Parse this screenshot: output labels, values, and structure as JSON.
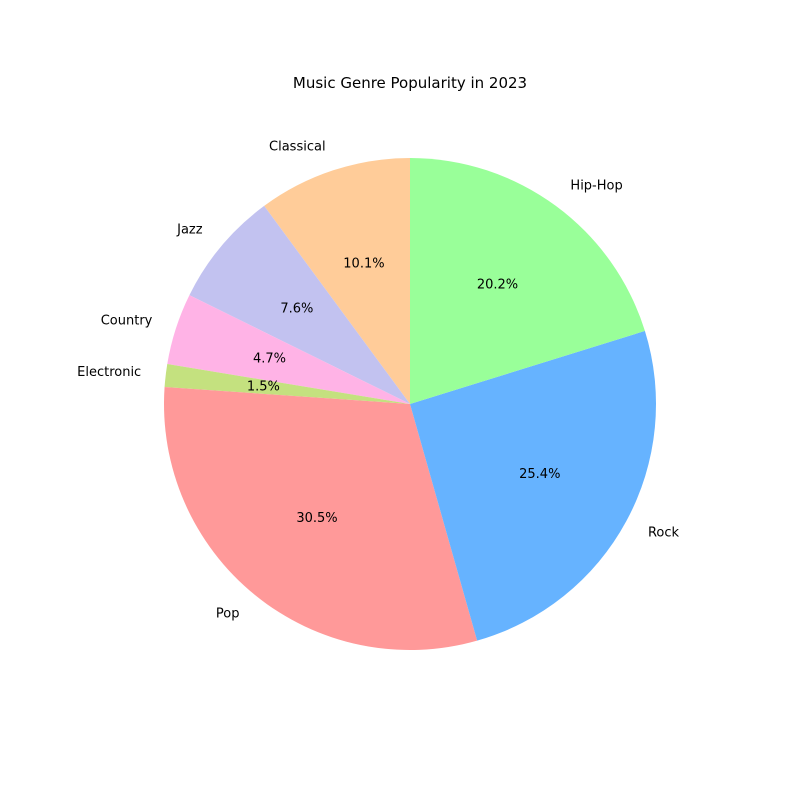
{
  "chart_data": {
    "type": "pie",
    "title": "Music Genre Popularity in 2023",
    "start_angle_deg": 90,
    "direction": "counterclockwise",
    "legend": "none",
    "slices": [
      {
        "label": "Classical",
        "value": 10.1,
        "pct_label": "10.1%",
        "color": "#ffcc99"
      },
      {
        "label": "Jazz",
        "value": 7.6,
        "pct_label": "7.6%",
        "color": "#c2c2f0"
      },
      {
        "label": "Country",
        "value": 4.7,
        "pct_label": "4.7%",
        "color": "#ffb3e6"
      },
      {
        "label": "Electronic",
        "value": 1.5,
        "pct_label": "1.5%",
        "color": "#c4e17f"
      },
      {
        "label": "Pop",
        "value": 30.5,
        "pct_label": "30.5%",
        "color": "#ff9999"
      },
      {
        "label": "Rock",
        "value": 25.4,
        "pct_label": "25.4%",
        "color": "#66b3ff"
      },
      {
        "label": "Hip-Hop",
        "value": 20.2,
        "pct_label": "20.2%",
        "color": "#99ff99"
      }
    ]
  }
}
